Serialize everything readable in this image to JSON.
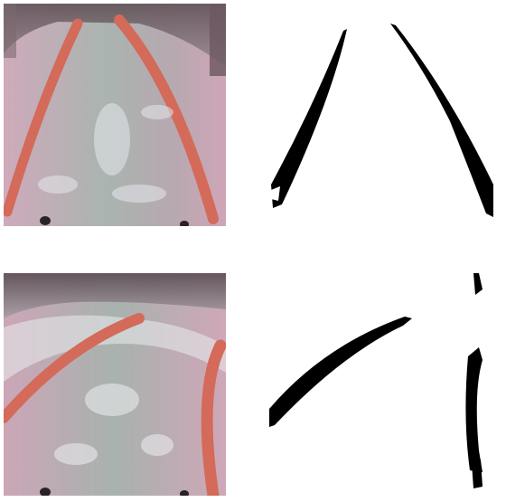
{
  "panels": [
    {
      "id": "photo-top",
      "kind": "camera-frame",
      "description": "pool-floor-with-two-converging-lanes"
    },
    {
      "id": "mask-top",
      "kind": "binary-mask"
    },
    {
      "id": "photo-bottom",
      "kind": "camera-frame",
      "description": "pool-floor-with-curving-lanes"
    },
    {
      "id": "mask-bottom",
      "kind": "binary-mask"
    }
  ],
  "colors": {
    "floor_pink": "#c9a8b8",
    "floor_gray": "#a7b1ad",
    "lane_orange": "#d86a5c",
    "wall_dark": "#6e5c64",
    "mask_black": "#000000",
    "mask_white": "#ffffff"
  }
}
